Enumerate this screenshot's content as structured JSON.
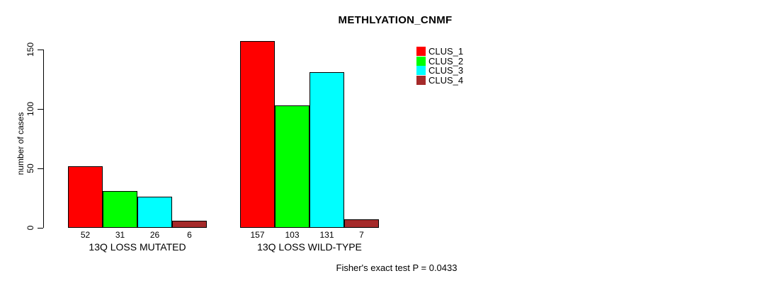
{
  "title": "METHLYATION_CNMF",
  "footer_note": "Fisher's exact test P = 0.0433",
  "colors": {
    "background": "#ffffff",
    "axis": "#000000",
    "bar_border": "#000000",
    "text": "#000000"
  },
  "chart_data": {
    "type": "bar",
    "title": "METHLYATION_CNMF",
    "xlabel": "",
    "ylabel": "number of cases",
    "categories": [
      "13Q LOSS MUTATED",
      "13Q LOSS WILD-TYPE"
    ],
    "series": [
      {
        "name": "CLUS_1",
        "color": "#ff0000",
        "values": [
          52,
          157
        ]
      },
      {
        "name": "CLUS_2",
        "color": "#00ff00",
        "values": [
          31,
          103
        ]
      },
      {
        "name": "CLUS_3",
        "color": "#00ffff",
        "values": [
          26,
          131
        ]
      },
      {
        "name": "CLUS_4",
        "color": "#a52a2a",
        "values": [
          6,
          7
        ]
      }
    ],
    "bar_value_labels": [
      [
        "52",
        "31",
        "26",
        "6"
      ],
      [
        "157",
        "103",
        "131",
        "7"
      ]
    ],
    "ylim": [
      0,
      157
    ],
    "yticks": [
      0,
      50,
      100,
      150
    ],
    "grid": false,
    "legend_position": "top-right",
    "legend_entries": [
      "CLUS_1",
      "CLUS_2",
      "CLUS_3",
      "CLUS_4"
    ],
    "annotation": "Fisher's exact test P = 0.0433"
  }
}
